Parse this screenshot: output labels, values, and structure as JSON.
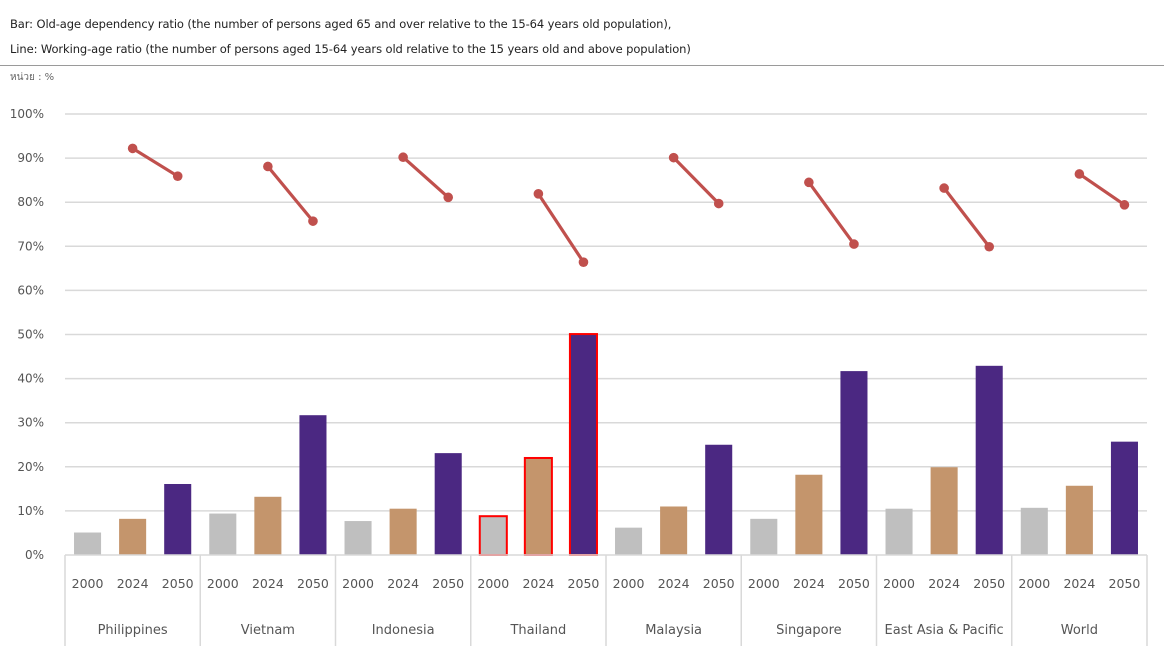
{
  "chart_data": {
    "type": "bar",
    "title_lines": [
      "Bar: Old-age dependency ratio (the number of persons aged 65 and over relative to the 15-64 years old population),",
      "Line: Working-age ratio (the number of persons aged 15-64 years old relative to the 15 years old and above population)"
    ],
    "unit_label": "หน่วย : %",
    "ylim": [
      0,
      100
    ],
    "yticks": [
      0,
      10,
      20,
      30,
      40,
      50,
      60,
      70,
      80,
      90,
      100
    ],
    "ytick_labels": [
      "0%",
      "10%",
      "20%",
      "30%",
      "40%",
      "50%",
      "60%",
      "70%",
      "80%",
      "90%",
      "100%"
    ],
    "grid": true,
    "years": [
      "2000",
      "2024",
      "2050"
    ],
    "categories": [
      "Philippines",
      "Vietnam",
      "Indonesia",
      "Thailand",
      "Malaysia",
      "Singapore",
      "East Asia & Pacific",
      "World"
    ],
    "highlight_category": "Thailand",
    "bar_series": [
      {
        "name": "2000",
        "color": "#bfbfbf",
        "values": [
          5.1,
          9.4,
          7.7,
          8.8,
          6.2,
          8.2,
          10.5,
          10.7
        ]
      },
      {
        "name": "2024",
        "color": "#c4956c",
        "values": [
          8.2,
          13.2,
          10.5,
          22.0,
          11.0,
          18.2,
          19.9,
          15.7
        ]
      },
      {
        "name": "2050",
        "color": "#4b2882",
        "values": [
          16.1,
          31.7,
          23.1,
          50.1,
          25.0,
          41.7,
          42.9,
          25.7
        ]
      }
    ],
    "line_series": {
      "name": "Working-age ratio",
      "color": "#c0504d",
      "years": [
        "2024",
        "2050"
      ],
      "values": [
        [
          92.2,
          85.9
        ],
        [
          88.1,
          75.7
        ],
        [
          90.2,
          81.1
        ],
        [
          81.9,
          66.4
        ],
        [
          90.1,
          79.7
        ],
        [
          84.5,
          70.5
        ],
        [
          83.2,
          69.9
        ],
        [
          86.4,
          79.4
        ]
      ]
    },
    "colors": {
      "highlight_outline": "#ff0000",
      "grid": "#d9d9d9",
      "axis": "#d9d9d9"
    }
  }
}
